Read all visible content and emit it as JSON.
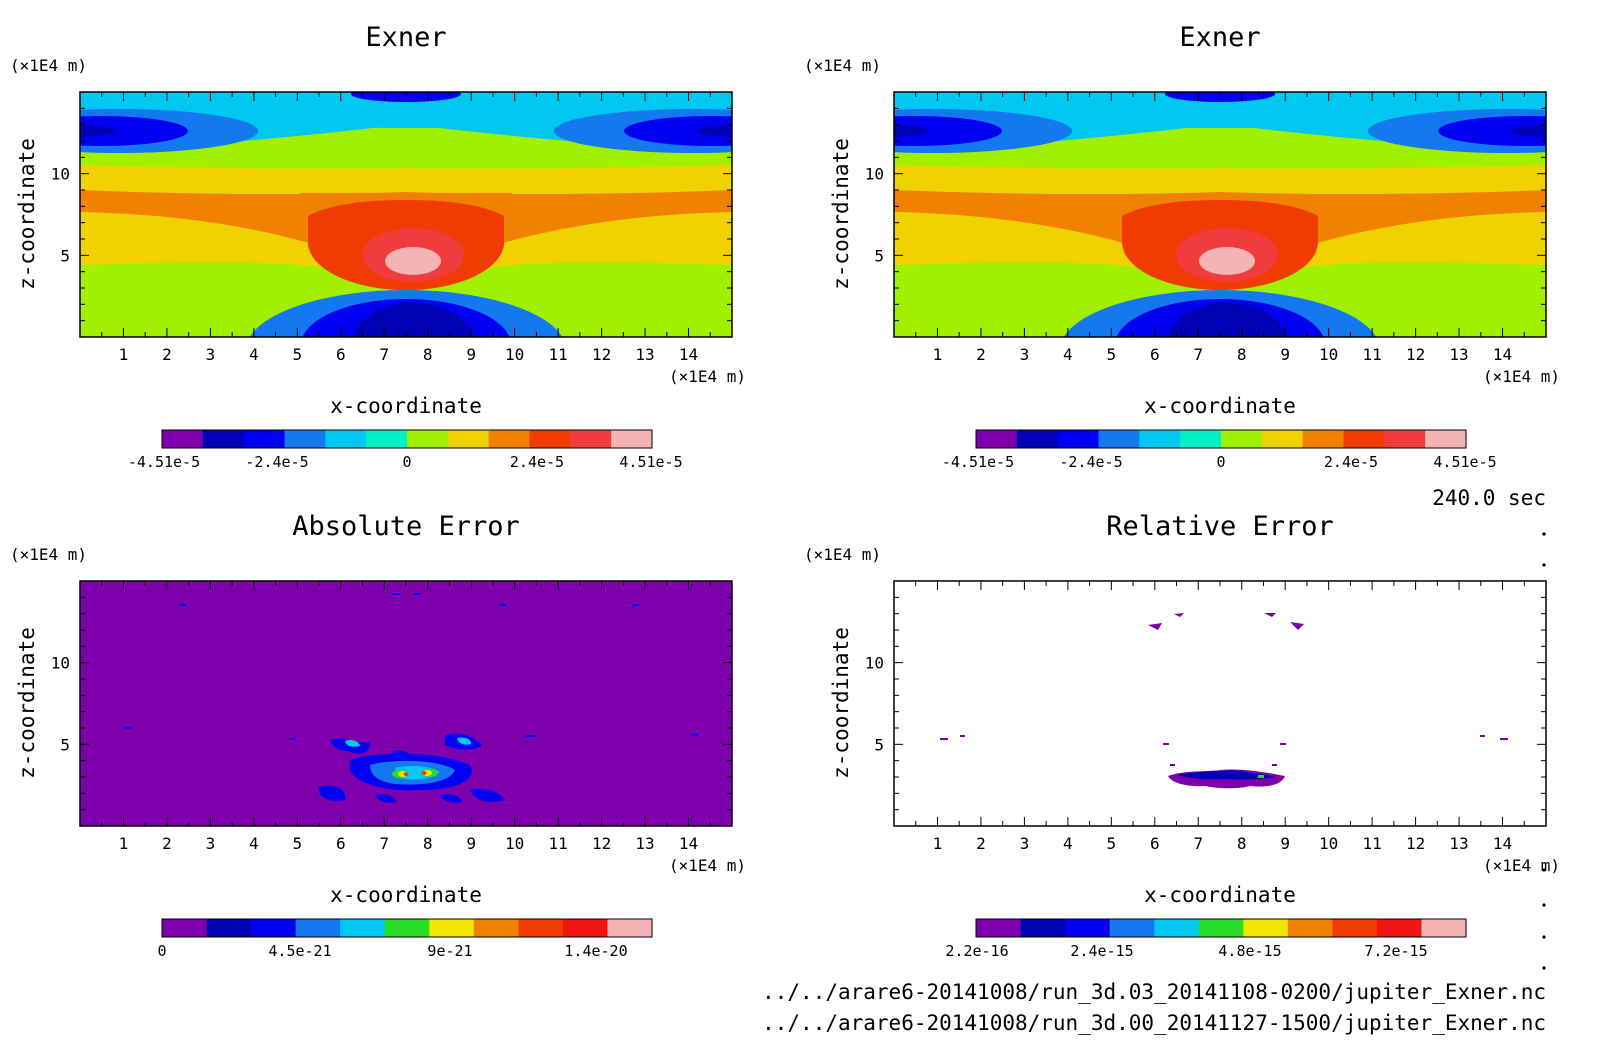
{
  "figure": {
    "time_label": "240.0 sec",
    "files": [
      "../../arare6-20141008/run_3d.03_20141108-0200/jupiter_Exner.nc",
      "../../arare6-20141008/run_3d.00_20141127-1500/jupiter_Exner.nc"
    ]
  },
  "chart_data": [
    {
      "type": "heatmap",
      "title": "Exner",
      "xlabel": "x-coordinate",
      "ylabel": "z-coordinate",
      "x_unit": "(×1E4 m)",
      "y_unit": "(×1E4 m)",
      "xlim": [
        0,
        15
      ],
      "ylim": [
        0,
        15
      ],
      "xticks": [
        "1",
        "2",
        "3",
        "4",
        "5",
        "6",
        "7",
        "8",
        "9",
        "10",
        "11",
        "12",
        "13",
        "14"
      ],
      "yticks": [
        "5",
        "10"
      ],
      "colorbar": {
        "colors": [
          "#7e00ad",
          "#0000b4",
          "#0000f0",
          "#1478f0",
          "#00c8f0",
          "#00f0c8",
          "#a0f000",
          "#f0d200",
          "#f08200",
          "#f03c00",
          "#f03c3c",
          "#f5b4b4"
        ],
        "tick_labels": [
          "-4.51e-5",
          "-2.4e-5",
          "0",
          "2.4e-5",
          "4.51e-5"
        ]
      }
    },
    {
      "type": "heatmap",
      "title": "Exner",
      "xlabel": "x-coordinate",
      "ylabel": "z-coordinate",
      "x_unit": "(×1E4 m)",
      "y_unit": "(×1E4 m)",
      "xlim": [
        0,
        15
      ],
      "ylim": [
        0,
        15
      ],
      "xticks": [
        "1",
        "2",
        "3",
        "4",
        "5",
        "6",
        "7",
        "8",
        "9",
        "10",
        "11",
        "12",
        "13",
        "14"
      ],
      "yticks": [
        "5",
        "10"
      ],
      "colorbar": {
        "colors": [
          "#7e00ad",
          "#0000b4",
          "#0000f0",
          "#1478f0",
          "#00c8f0",
          "#00f0c8",
          "#a0f000",
          "#f0d200",
          "#f08200",
          "#f03c00",
          "#f03c3c",
          "#f5b4b4"
        ],
        "tick_labels": [
          "-4.51e-5",
          "-2.4e-5",
          "0",
          "2.4e-5",
          "4.51e-5"
        ]
      }
    },
    {
      "type": "heatmap",
      "title": "Absolute Error",
      "xlabel": "x-coordinate",
      "ylabel": "z-coordinate",
      "x_unit": "(×1E4 m)",
      "y_unit": "(×1E4 m)",
      "xlim": [
        0,
        15
      ],
      "ylim": [
        0,
        15
      ],
      "xticks": [
        "1",
        "2",
        "3",
        "4",
        "5",
        "6",
        "7",
        "8",
        "9",
        "10",
        "11",
        "12",
        "13",
        "14"
      ],
      "yticks": [
        "5",
        "10"
      ],
      "colorbar": {
        "colors": [
          "#7e00ad",
          "#0000b4",
          "#0000f0",
          "#1478f0",
          "#00c8f0",
          "#28dc28",
          "#f0e600",
          "#f08200",
          "#f03c00",
          "#f01414",
          "#f5b4b4"
        ],
        "tick_labels": [
          "0",
          "4.5e-21",
          "9e-21",
          "1.4e-20"
        ]
      }
    },
    {
      "type": "heatmap",
      "title": "Relative Error",
      "xlabel": "x-coordinate",
      "ylabel": "z-coordinate",
      "x_unit": "(×1E4 m)",
      "y_unit": "(×1E4 m)",
      "xlim": [
        0,
        15
      ],
      "ylim": [
        0,
        15
      ],
      "xticks": [
        "1",
        "2",
        "3",
        "4",
        "5",
        "6",
        "7",
        "8",
        "9",
        "10",
        "11",
        "12",
        "13",
        "14"
      ],
      "yticks": [
        "5",
        "10"
      ],
      "colorbar": {
        "colors": [
          "#7e00ad",
          "#0000b4",
          "#0000f0",
          "#1478f0",
          "#00c8f0",
          "#28dc28",
          "#f0e600",
          "#f08200",
          "#f03c00",
          "#f01414",
          "#f5b4b4"
        ],
        "tick_labels": [
          "2.2e-16",
          "2.4e-15",
          "4.8e-15",
          "7.2e-15"
        ]
      }
    }
  ]
}
